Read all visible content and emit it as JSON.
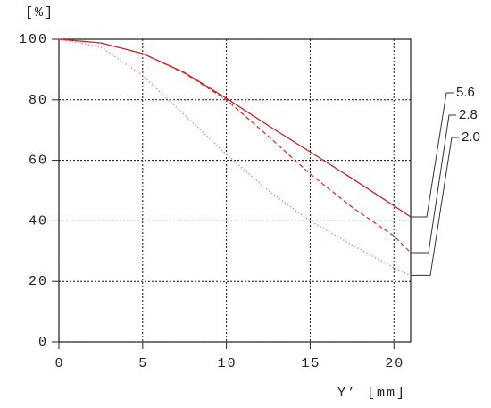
{
  "chart_data": {
    "type": "line",
    "ylabel": "[%]",
    "xlabel": "Y’ [mm]",
    "x": [
      0,
      2.5,
      5,
      7.5,
      10,
      12.5,
      15,
      17.5,
      20,
      21
    ],
    "series": [
      {
        "name": "5.6",
        "color": "#c81818",
        "style": "solid",
        "values": [
          100,
          98.8,
          95.3,
          89,
          80.5,
          71.5,
          62.8,
          54,
          45,
          41.3
        ]
      },
      {
        "name": "2.8",
        "color": "#d42a2a",
        "style": "dashed",
        "values": [
          100,
          98.8,
          95.3,
          88.8,
          80,
          68,
          55.5,
          44.5,
          35,
          29.5
        ]
      },
      {
        "name": "2.0",
        "color": "#d87878",
        "style": "dotted",
        "values": [
          100,
          97.5,
          88,
          75,
          62,
          50,
          40,
          32,
          24.5,
          22
        ]
      }
    ],
    "xlim": [
      0,
      21
    ],
    "ylim": [
      0,
      100
    ],
    "xticks": [
      0,
      5,
      10,
      15,
      20
    ],
    "yticks": [
      0,
      20,
      40,
      60,
      80,
      100
    ],
    "grid": true,
    "legend": "right"
  }
}
